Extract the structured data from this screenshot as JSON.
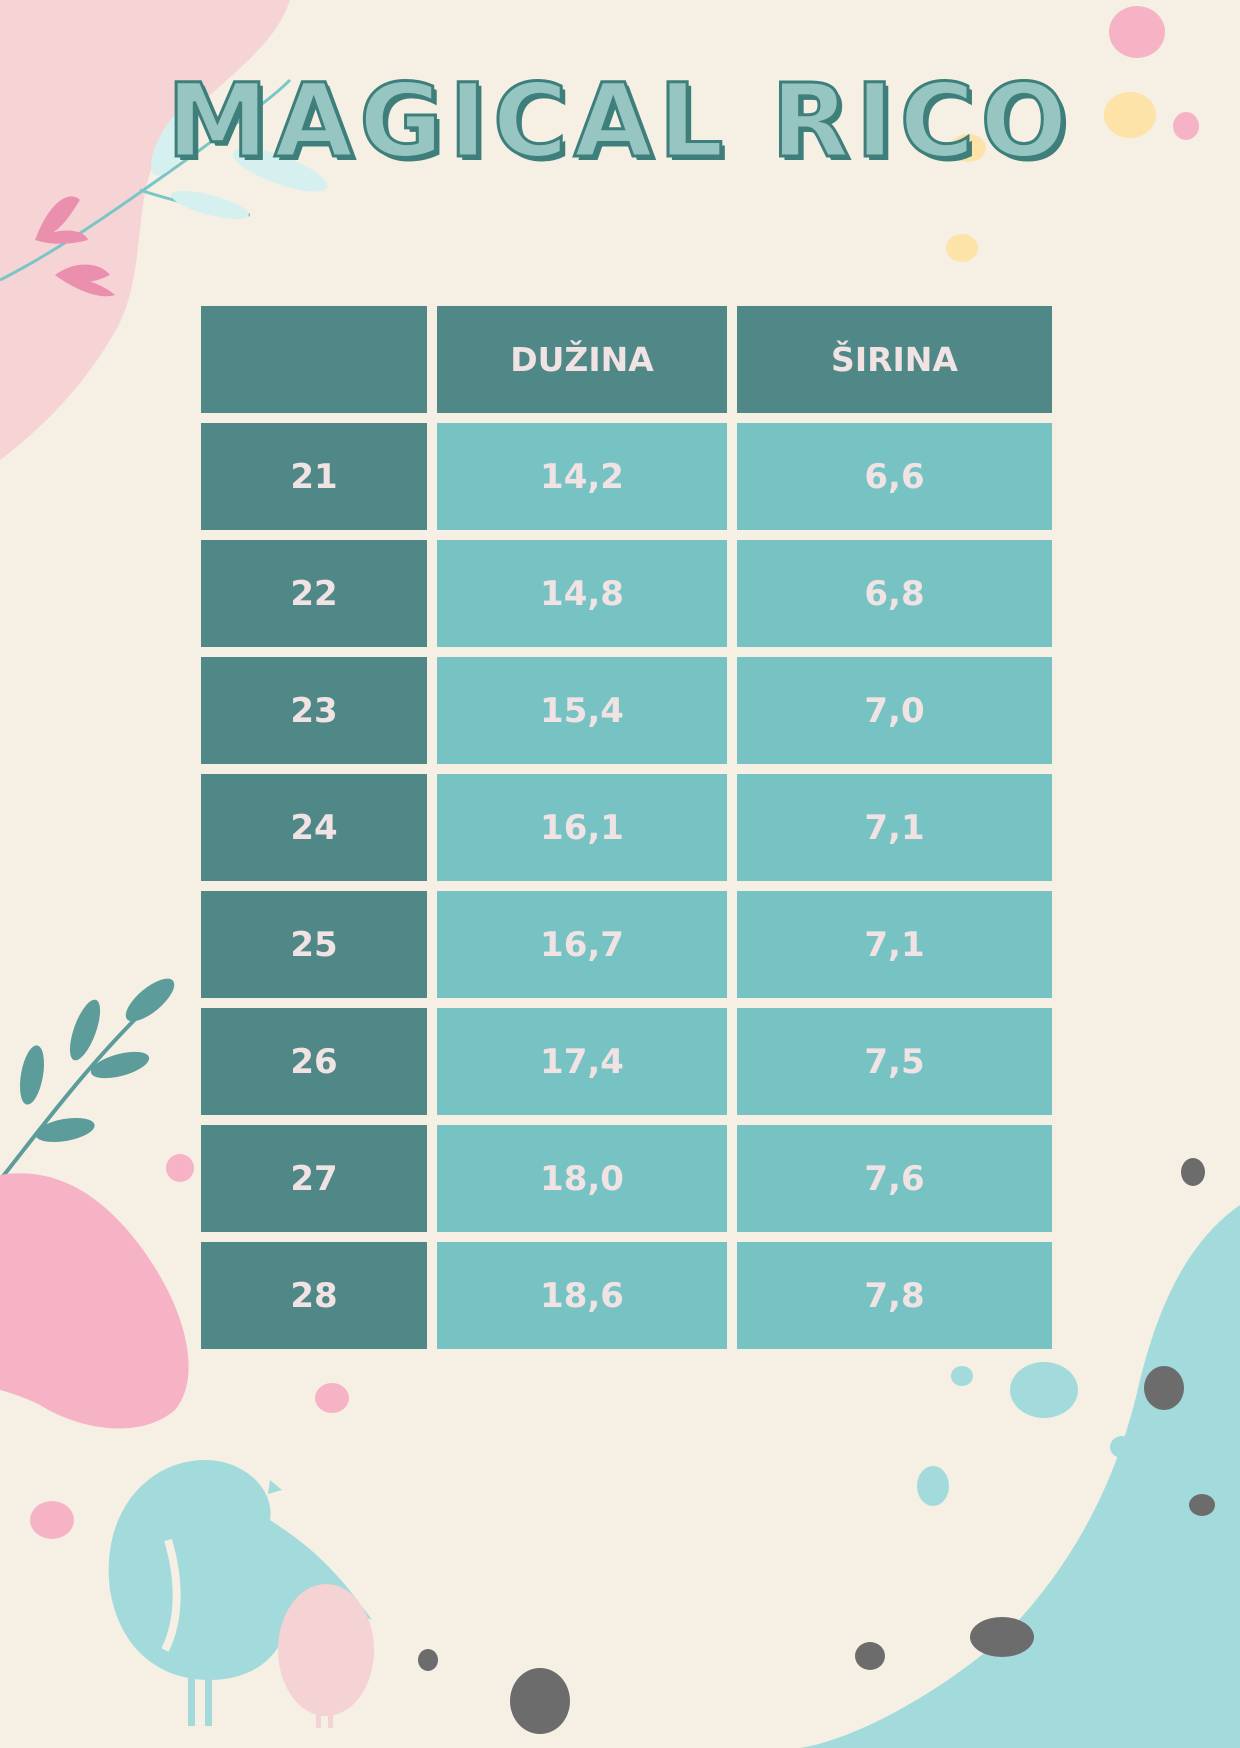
{
  "title": "MAGICAL RICO",
  "table": {
    "headers": [
      "",
      "DUŽINA",
      "ŠIRINA"
    ],
    "rows": [
      {
        "size": "21",
        "length": "14,2",
        "width": "6,6"
      },
      {
        "size": "22",
        "length": "14,8",
        "width": "6,8"
      },
      {
        "size": "23",
        "length": "15,4",
        "width": "7,0"
      },
      {
        "size": "24",
        "length": "16,1",
        "width": "7,1"
      },
      {
        "size": "25",
        "length": "16,7",
        "width": "7,1"
      },
      {
        "size": "26",
        "length": "17,4",
        "width": "7,5"
      },
      {
        "size": "27",
        "length": "18,0",
        "width": "7,6"
      },
      {
        "size": "28",
        "length": "18,6",
        "width": "7,8"
      }
    ]
  },
  "colors": {
    "background": "#f5efe4",
    "header_teal": "#4f8886",
    "cell_teal": "#77c3c3",
    "cell_text": "#f1e3e3",
    "pink": "#f7b3c6",
    "light_blue": "#a3dadb",
    "yellow": "#fde3a7",
    "dark_spot": "#6c6c6c"
  }
}
